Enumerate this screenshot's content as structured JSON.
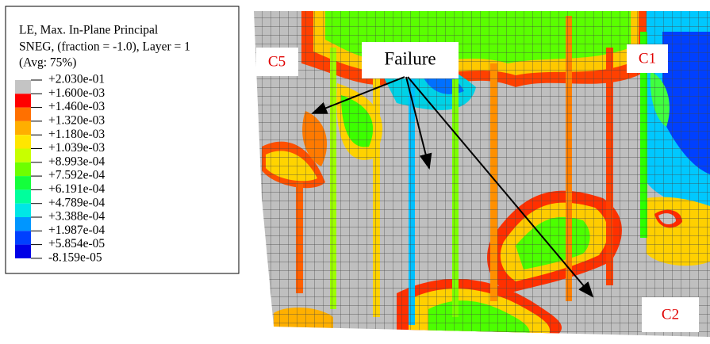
{
  "legend": {
    "title_lines": [
      "LE, Max. In-Plane Principal",
      "SNEG, (fraction = -1.0), Layer = 1",
      "(Avg: 75%)"
    ],
    "labels": [
      "+2.030e-01",
      "+1.600e-03",
      "+1.460e-03",
      "+1.320e-03",
      "+1.180e-03",
      "+1.039e-03",
      "+8.993e-04",
      "+7.592e-04",
      "+6.191e-04",
      "+4.789e-04",
      "+3.388e-04",
      "+1.987e-04",
      "+5.854e-05",
      "-8.159e-05"
    ],
    "colors": [
      "#c4c4c4",
      "#ff0000",
      "#ff7000",
      "#ffae00",
      "#ffe600",
      "#c8ff00",
      "#6eff00",
      "#14ff3c",
      "#00ff9c",
      "#00e6e6",
      "#0096ff",
      "#0040ff",
      "#0000e6"
    ]
  },
  "annotations": {
    "failure": "Failure",
    "c5": "C5",
    "c1": "C1",
    "c2": "C2"
  }
}
